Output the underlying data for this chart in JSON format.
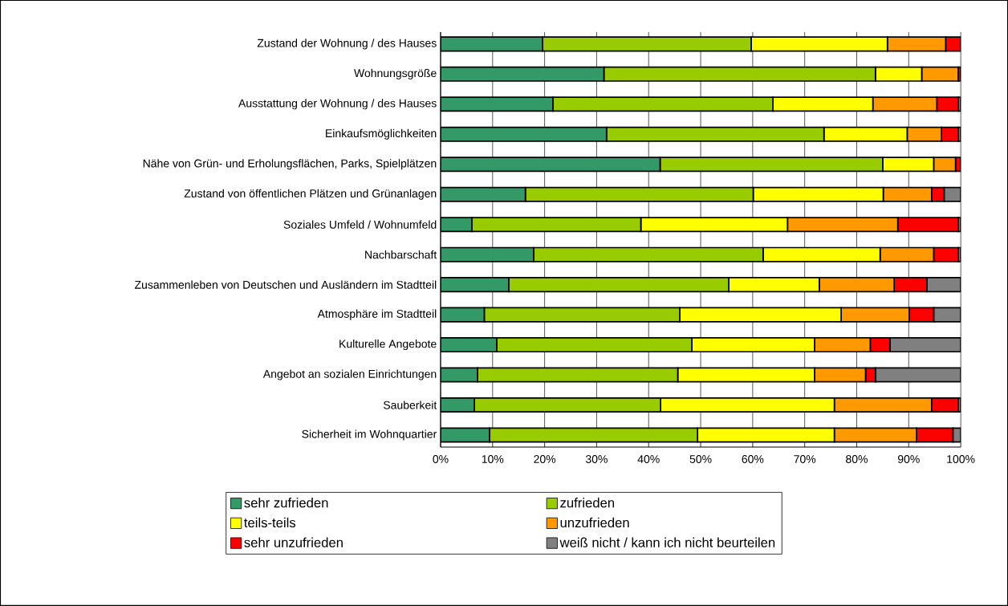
{
  "chart_data": {
    "type": "bar",
    "orientation": "horizontal",
    "stacked": true,
    "categories": [
      "Zustand der Wohnung / des Hauses",
      "Wohnungsgröße",
      "Ausstattung der Wohnung / des Hauses",
      "Einkaufsmöglichkeiten",
      "Nähe von Grün- und Erholungsflächen, Parks, Spielplätzen",
      "Zustand von öffentlichen Plätzen und Grünanlagen",
      "Soziales Umfeld / Wohnumfeld",
      "Nachbarschaft",
      "Zusammenleben von Deutschen und Ausländern im Stadtteil",
      "Atmosphäre im Stadtteil",
      "Kulturelle Angebote",
      "Angebot an sozialen Einrichtungen",
      "Sauberkeit",
      "Sicherheit im Wohnquartier"
    ],
    "series": [
      {
        "name": "sehr zufrieden",
        "color": "#339966",
        "values": [
          19.6,
          31.4,
          21.6,
          31.9,
          42.2,
          16.3,
          6.0,
          17.9,
          13.1,
          8.4,
          10.8,
          7.1,
          6.5,
          9.4
        ]
      },
      {
        "name": "zufrieden",
        "color": "#99cc00",
        "values": [
          40.1,
          52.2,
          42.3,
          41.8,
          42.8,
          43.8,
          32.5,
          44.1,
          42.3,
          37.6,
          37.5,
          38.5,
          35.8,
          40.0
        ]
      },
      {
        "name": "teils-teils",
        "color": "#ffff00",
        "values": [
          26.2,
          8.9,
          19.2,
          16.0,
          9.8,
          25.0,
          28.2,
          22.5,
          17.4,
          31.0,
          23.6,
          26.3,
          33.4,
          26.3
        ]
      },
      {
        "name": "unzufrieden",
        "color": "#ff9900",
        "values": [
          11.2,
          7.0,
          12.3,
          6.6,
          4.2,
          9.3,
          21.2,
          10.3,
          14.4,
          13.1,
          10.7,
          9.8,
          18.7,
          15.8
        ]
      },
      {
        "name": "sehr unzufrieden",
        "color": "#ff0000",
        "values": [
          2.9,
          0.5,
          4.1,
          3.2,
          1.0,
          2.4,
          11.6,
          4.7,
          6.3,
          4.7,
          3.8,
          1.9,
          5.1,
          7.0
        ]
      },
      {
        "name": "weiß nicht / kann ich nicht beurteilen",
        "color": "#808080",
        "values": [
          0,
          0,
          0.5,
          0.5,
          0,
          3.2,
          0.5,
          0.5,
          6.5,
          5.2,
          13.6,
          16.4,
          0.5,
          1.5
        ]
      }
    ],
    "xlim": [
      0,
      100
    ],
    "xticks": [
      {
        "value": 0,
        "label": "0%"
      },
      {
        "value": 10,
        "label": "10%"
      },
      {
        "value": 20,
        "label": "20%"
      },
      {
        "value": 30,
        "label": "30%"
      },
      {
        "value": 40,
        "label": "40%"
      },
      {
        "value": 50,
        "label": "50%"
      },
      {
        "value": 60,
        "label": "60%"
      },
      {
        "value": 70,
        "label": "70%"
      },
      {
        "value": 80,
        "label": "80%"
      },
      {
        "value": 90,
        "label": "90%"
      },
      {
        "value": 100,
        "label": "100%"
      }
    ],
    "grid": "x",
    "legend": "bottom"
  }
}
